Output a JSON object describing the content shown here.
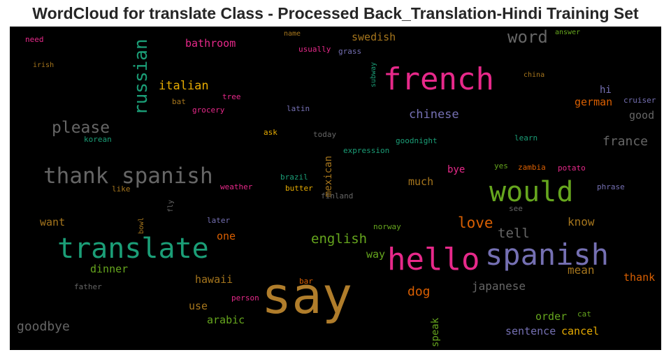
{
  "chart_data": {
    "type": "wordcloud",
    "title": "WordCloud for translate Class - Processed Back_Translation-Hindi Training Set",
    "background": "#000000",
    "words": [
      {
        "text": "say",
        "weight": 72,
        "color": "#b07d2b"
      },
      {
        "text": "hello",
        "weight": 44,
        "color": "#e7298a"
      },
      {
        "text": "french",
        "weight": 44,
        "color": "#e7298a"
      },
      {
        "text": "spanish",
        "weight": 42,
        "color": "#7570b3"
      },
      {
        "text": "translate",
        "weight": 40,
        "color": "#1b9e77"
      },
      {
        "text": "would",
        "weight": 40,
        "color": "#66a61e"
      },
      {
        "text": "thank spanish",
        "weight": 31,
        "color": "#666666"
      },
      {
        "text": "russian",
        "weight": 26,
        "color": "#1b9e77"
      },
      {
        "text": "word",
        "weight": 24,
        "color": "#666666"
      },
      {
        "text": "please",
        "weight": 23,
        "color": "#666666"
      },
      {
        "text": "love",
        "weight": 21,
        "color": "#d95f02"
      },
      {
        "text": "english",
        "weight": 19,
        "color": "#66a61e"
      },
      {
        "text": "tell",
        "weight": 19,
        "color": "#666666"
      },
      {
        "text": "france",
        "weight": 18,
        "color": "#666666"
      },
      {
        "text": "goodbye",
        "weight": 18,
        "color": "#666666"
      },
      {
        "text": "dog",
        "weight": 18,
        "color": "#d95f02"
      },
      {
        "text": "italian",
        "weight": 17,
        "color": "#e6ab02"
      },
      {
        "text": "chinese",
        "weight": 17,
        "color": "#7570b3"
      },
      {
        "text": "japanese",
        "weight": 16,
        "color": "#666666"
      },
      {
        "text": "mean",
        "weight": 16,
        "color": "#a6761d"
      },
      {
        "text": "know",
        "weight": 16,
        "color": "#a6761d"
      },
      {
        "text": "thank",
        "weight": 15,
        "color": "#d95f02"
      },
      {
        "text": "hawaii",
        "weight": 15,
        "color": "#a6761d"
      },
      {
        "text": "arabic",
        "weight": 15,
        "color": "#66a61e"
      },
      {
        "text": "bathroom",
        "weight": 15,
        "color": "#e7298a"
      },
      {
        "text": "swedish",
        "weight": 15,
        "color": "#a6761d"
      },
      {
        "text": "german",
        "weight": 15,
        "color": "#d95f02"
      },
      {
        "text": "good",
        "weight": 15,
        "color": "#666666"
      },
      {
        "text": "mexican",
        "weight": 14,
        "color": "#a6761d"
      },
      {
        "text": "order",
        "weight": 15,
        "color": "#66a61e"
      },
      {
        "text": "cancel",
        "weight": 15,
        "color": "#e6ab02"
      },
      {
        "text": "sentence",
        "weight": 15,
        "color": "#7570b3"
      },
      {
        "text": "much",
        "weight": 15,
        "color": "#a6761d"
      },
      {
        "text": "dinner",
        "weight": 15,
        "color": "#66a61e"
      },
      {
        "text": "want",
        "weight": 15,
        "color": "#a6761d"
      },
      {
        "text": "one",
        "weight": 15,
        "color": "#d95f02"
      },
      {
        "text": "use",
        "weight": 15,
        "color": "#a6761d"
      },
      {
        "text": "speak",
        "weight": 14,
        "color": "#66a61e"
      },
      {
        "text": "way",
        "weight": 15,
        "color": "#66a61e"
      },
      {
        "text": "bye",
        "weight": 14,
        "color": "#e7298a"
      },
      {
        "text": "hi",
        "weight": 14,
        "color": "#7570b3"
      },
      {
        "text": "expression",
        "weight": 11,
        "color": "#1b9e77"
      },
      {
        "text": "goodnight",
        "weight": 11,
        "color": "#1b9e77"
      },
      {
        "text": "subway",
        "weight": 10,
        "color": "#1b9e77"
      },
      {
        "text": "potato",
        "weight": 11,
        "color": "#e7298a"
      },
      {
        "text": "zambia",
        "weight": 11,
        "color": "#d95f02"
      },
      {
        "text": "yes",
        "weight": 11,
        "color": "#66a61e"
      },
      {
        "text": "learn",
        "weight": 11,
        "color": "#1b9e77"
      },
      {
        "text": "china",
        "weight": 10,
        "color": "#a6761d"
      },
      {
        "text": "answer",
        "weight": 10,
        "color": "#66a61e"
      },
      {
        "text": "cruiser",
        "weight": 11,
        "color": "#7570b3"
      },
      {
        "text": "phrase",
        "weight": 11,
        "color": "#7570b3"
      },
      {
        "text": "see",
        "weight": 11,
        "color": "#666666"
      },
      {
        "text": "cat",
        "weight": 11,
        "color": "#66a61e"
      },
      {
        "text": "person",
        "weight": 11,
        "color": "#e7298a"
      },
      {
        "text": "bar",
        "weight": 11,
        "color": "#d95f02"
      },
      {
        "text": "norway",
        "weight": 11,
        "color": "#66a61e"
      },
      {
        "text": "later",
        "weight": 11,
        "color": "#7570b3"
      },
      {
        "text": "finland",
        "weight": 11,
        "color": "#666666"
      },
      {
        "text": "butter",
        "weight": 11,
        "color": "#e6ab02"
      },
      {
        "text": "brazil",
        "weight": 11,
        "color": "#1b9e77"
      },
      {
        "text": "weather",
        "weight": 11,
        "color": "#e7298a"
      },
      {
        "text": "ask",
        "weight": 11,
        "color": "#e6ab02"
      },
      {
        "text": "today",
        "weight": 11,
        "color": "#666666"
      },
      {
        "text": "latin",
        "weight": 11,
        "color": "#7570b3"
      },
      {
        "text": "tree",
        "weight": 11,
        "color": "#e7298a"
      },
      {
        "text": "grocery",
        "weight": 11,
        "color": "#e7298a"
      },
      {
        "text": "bat",
        "weight": 11,
        "color": "#a6761d"
      },
      {
        "text": "usually",
        "weight": 11,
        "color": "#e7298a"
      },
      {
        "text": "grass",
        "weight": 11,
        "color": "#7570b3"
      },
      {
        "text": "name",
        "weight": 10,
        "color": "#a6761d"
      },
      {
        "text": "need",
        "weight": 11,
        "color": "#e7298a"
      },
      {
        "text": "irish",
        "weight": 10,
        "color": "#a6761d"
      },
      {
        "text": "korean",
        "weight": 11,
        "color": "#1b9e77"
      },
      {
        "text": "like",
        "weight": 11,
        "color": "#a6761d"
      },
      {
        "text": "fly",
        "weight": 10,
        "color": "#666666"
      },
      {
        "text": "bowl",
        "weight": 10,
        "color": "#a6761d"
      },
      {
        "text": "father",
        "weight": 11,
        "color": "#666666"
      }
    ]
  }
}
